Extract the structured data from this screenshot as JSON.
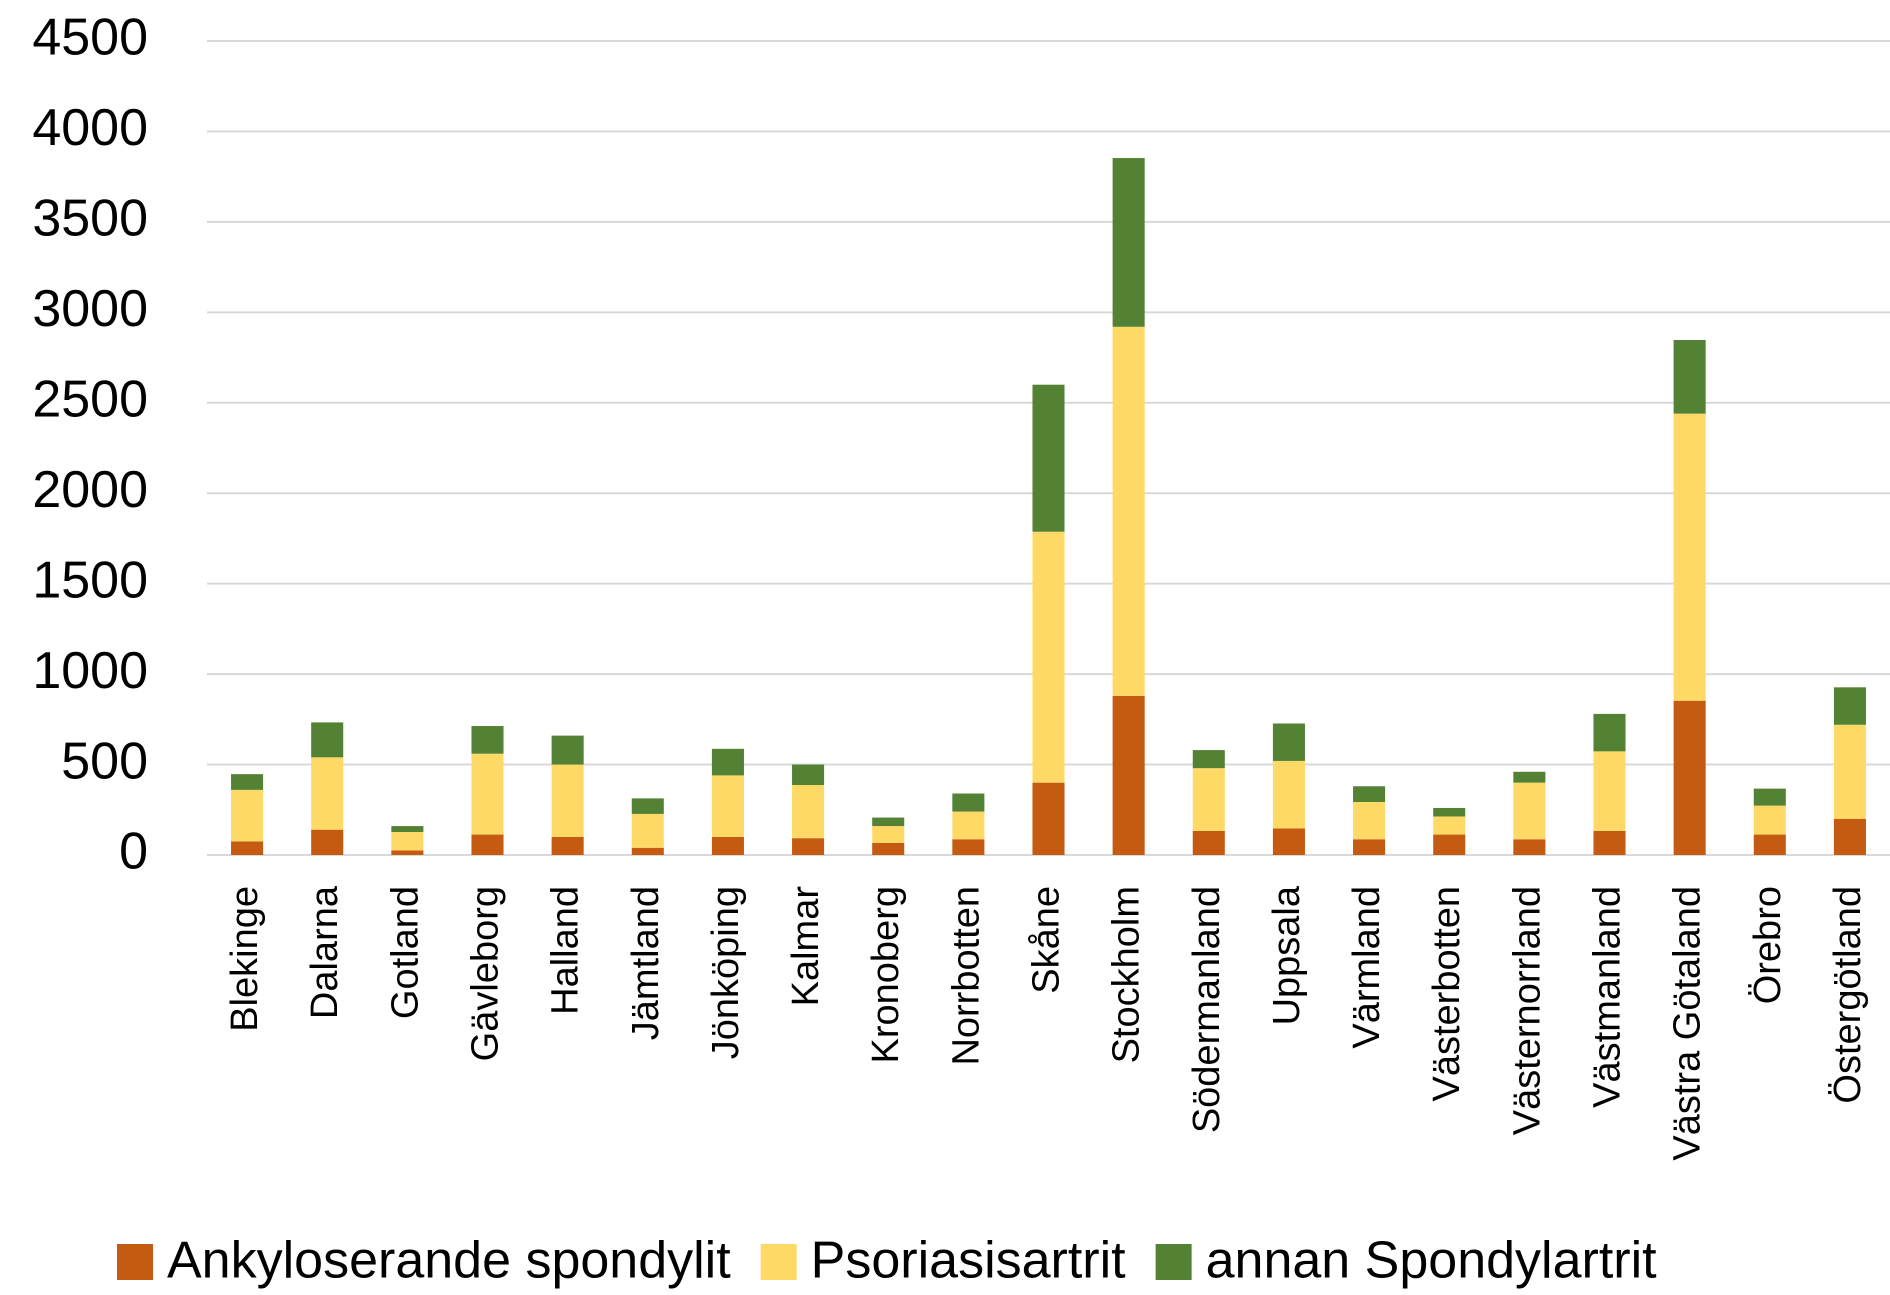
{
  "chart_data": {
    "type": "stacked_bar",
    "categories": [
      "Blekinge",
      "Dalarna",
      "Gotland",
      "Gävleborg",
      "Halland",
      "Jämtland",
      "Jönköping",
      "Kalmar",
      "Kronoberg",
      "Norrbotten",
      "Skåne",
      "Stockholm",
      "Södermanland",
      "Uppsala",
      "Värmland",
      "Västerbotten",
      "Västernorrland",
      "Västmanland",
      "Västra Götaland",
      "Örebro",
      "Östergötland"
    ],
    "series": [
      {
        "name": "Ankyloserande spondylit",
        "color": "#c55a11",
        "values": [
          75,
          140,
          25,
          113,
          100,
          40,
          100,
          93,
          67,
          87,
          400,
          880,
          133,
          147,
          87,
          113,
          87,
          133,
          853,
          113,
          200
        ]
      },
      {
        "name": "Psoriasisartrit",
        "color": "#ffd966",
        "values": [
          285,
          400,
          102,
          447,
          400,
          187,
          340,
          294,
          93,
          153,
          1387,
          2040,
          347,
          373,
          206,
          100,
          313,
          440,
          1587,
          160,
          520
        ]
      },
      {
        "name": "annan Spondylartrit",
        "color": "#548235",
        "values": [
          87,
          193,
          33,
          153,
          160,
          86,
          147,
          113,
          47,
          100,
          813,
          933,
          100,
          207,
          87,
          47,
          60,
          207,
          407,
          94,
          207
        ]
      }
    ],
    "ylim": [
      0,
      4500
    ],
    "yticks": [
      0,
      500,
      1000,
      1500,
      2000,
      2500,
      3000,
      3500,
      4000,
      4500
    ],
    "grid": true
  }
}
